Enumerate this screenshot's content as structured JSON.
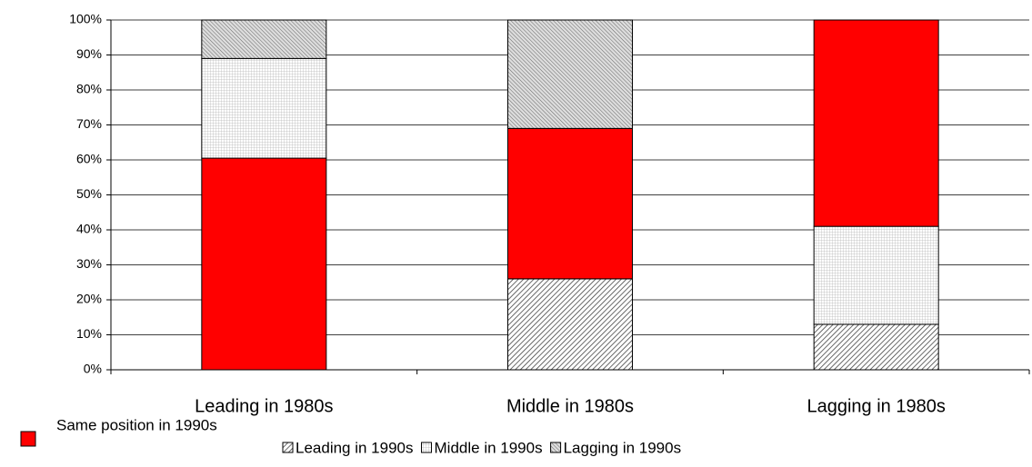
{
  "chart_data": {
    "type": "stacked_bar",
    "categories": [
      "Leading in 1980s",
      "Middle in 1980s",
      "Lagging in 1980s"
    ],
    "series": [
      {
        "name": "Same position in 1990s",
        "color": "#ff0000",
        "values": [
          60.5,
          43,
          59
        ]
      },
      {
        "name": "Leading in 1990s",
        "values": [
          0,
          26,
          13
        ]
      },
      {
        "name": "Middle in 1990s",
        "values": [
          28.5,
          0,
          28
        ]
      },
      {
        "name": "Lagging in 1990s",
        "values": [
          11,
          31,
          0
        ]
      }
    ],
    "ylim": [
      0,
      100
    ],
    "yticks": [
      {
        "value": 0,
        "label": "0%"
      },
      {
        "value": 10,
        "label": "10%"
      },
      {
        "value": 20,
        "label": "20%"
      },
      {
        "value": 30,
        "label": "30%"
      },
      {
        "value": 40,
        "label": "40%"
      },
      {
        "value": 50,
        "label": "50%"
      },
      {
        "value": 60,
        "label": "60%"
      },
      {
        "value": 70,
        "label": "70%"
      },
      {
        "value": 80,
        "label": "80%"
      },
      {
        "value": 90,
        "label": "90%"
      },
      {
        "value": 100,
        "label": "100%"
      }
    ],
    "grid": true
  }
}
